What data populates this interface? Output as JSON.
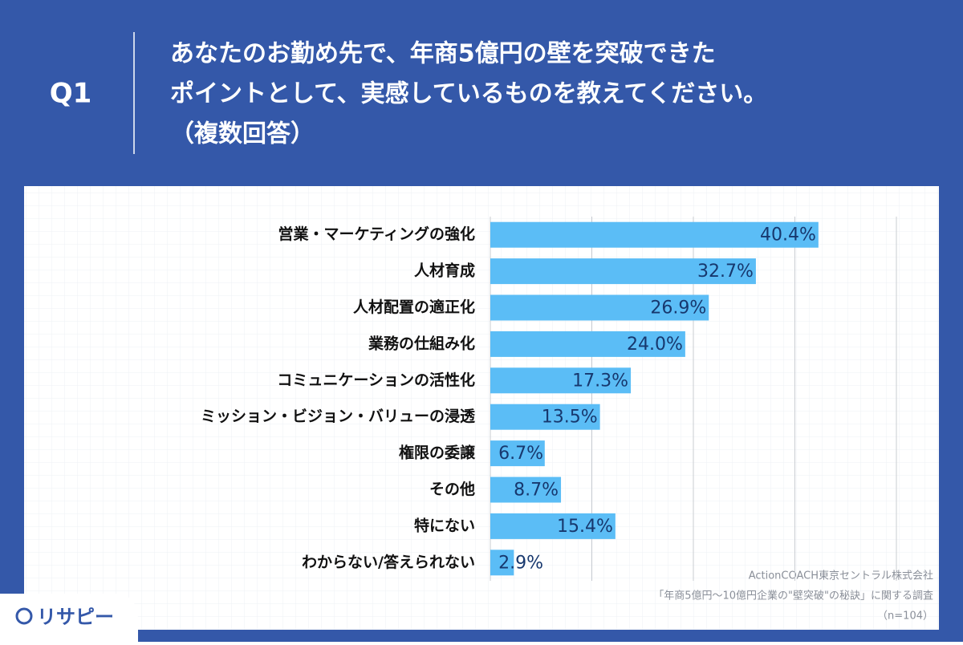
{
  "header": {
    "question": "Q1",
    "title_lines": [
      "あなたのお勤め先で、年商5億円の壁を突破できた",
      "ポイントとして、実感しているものを教えてください。",
      "（複数回答）"
    ]
  },
  "chart_data": {
    "type": "bar",
    "orientation": "horizontal",
    "categories": [
      "営業・マーケティングの強化",
      "人材育成",
      "人材配置の適正化",
      "業務の仕組み化",
      "コミュニケーションの活性化",
      "ミッション・ビジョン・バリューの浸透",
      "権限の委譲",
      "その他",
      "特にない",
      "わからない/答えられない"
    ],
    "values": [
      40.4,
      32.7,
      26.9,
      24.0,
      17.3,
      13.5,
      6.7,
      8.7,
      15.4,
      2.9
    ],
    "value_labels": [
      "40.4%",
      "32.7%",
      "26.9%",
      "24.0%",
      "17.3%",
      "13.5%",
      "6.7%",
      "8.7%",
      "15.4%",
      "2.9%"
    ],
    "color": "#5bbdf6",
    "xlim": [
      0,
      50
    ],
    "xticks": [
      0,
      12.5,
      25,
      37.5,
      50
    ],
    "grid": true
  },
  "source_lines": [
    "ActionCOACH東京セントラル株式会社",
    "「年商5億円〜10億円企業の\"壁突破\"の秘訣」に関する調査",
    "（n=104）"
  ],
  "logo": "リサピー"
}
